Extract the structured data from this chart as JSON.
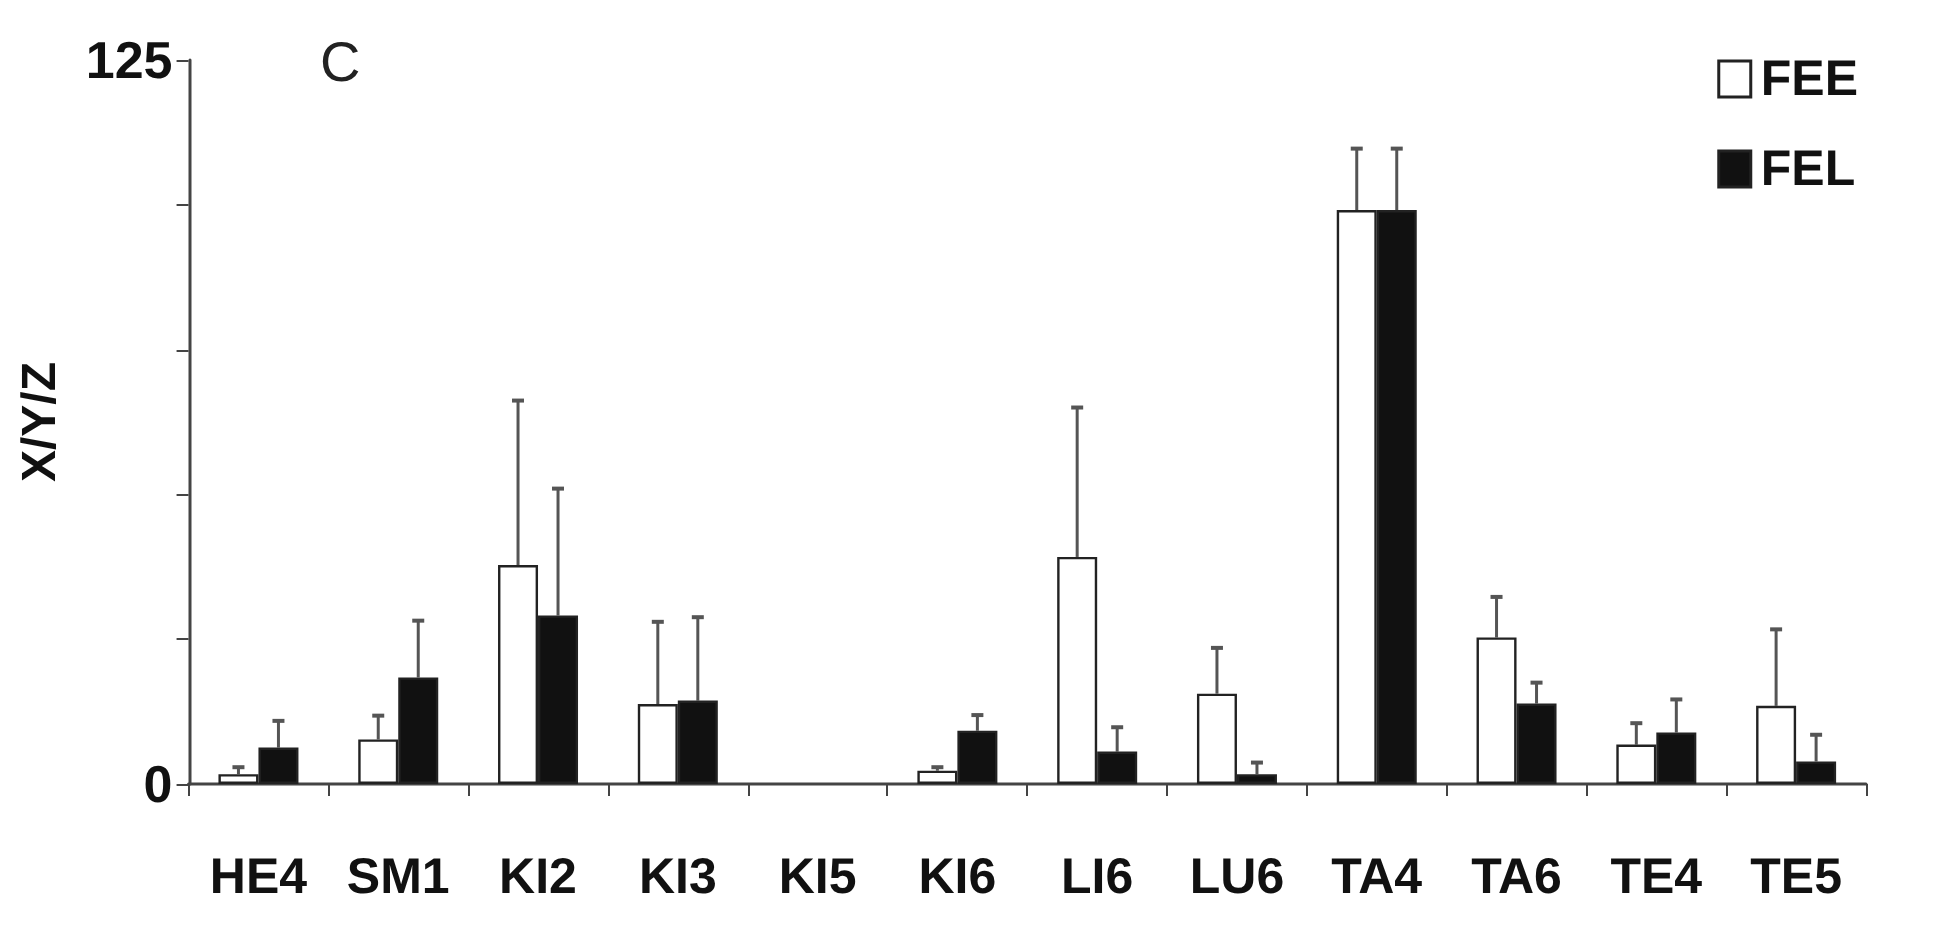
{
  "chart_data": {
    "type": "bar",
    "title": "C",
    "ylabel": "X/Y/Z",
    "categories": [
      "HE4",
      "SM1",
      "KI2",
      "KI3",
      "KI5",
      "KI6",
      "LI6",
      "LU6",
      "TA4",
      "TA6",
      "TE4",
      "TE5"
    ],
    "series": [
      {
        "name": "FEE",
        "color": "#ffffff",
        "values": [
          1.7,
          7.7,
          37.8,
          13.8,
          null,
          2.3,
          39.2,
          15.6,
          99.1,
          25.3,
          6.8,
          13.5
        ],
        "errors": [
          [
            1.7,
            2.9
          ],
          [
            7.7,
            11.8
          ],
          [
            37.8,
            66.2
          ],
          [
            13.8,
            28
          ],
          null,
          [
            2.3,
            2.9
          ],
          [
            39.2,
            65
          ],
          [
            15.6,
            23.5
          ],
          [
            99.1,
            109.7
          ],
          [
            25.3,
            32.3
          ],
          [
            6.8,
            10.5
          ],
          [
            13.5,
            26.7
          ]
        ]
      },
      {
        "name": "FEL",
        "color": "#111111",
        "values": [
          6.3,
          18.4,
          29.1,
          14.4,
          null,
          9.2,
          5.6,
          1.7,
          99.1,
          13.9,
          8.9,
          3.9
        ],
        "errors": [
          [
            6.3,
            10.9
          ],
          [
            18.4,
            28.2
          ],
          [
            29.1,
            51
          ],
          [
            14.4,
            28.8
          ],
          null,
          [
            9.2,
            11.9
          ],
          [
            5.6,
            9.8
          ],
          [
            1.7,
            3.7
          ],
          [
            99.1,
            109.7
          ],
          [
            13.9,
            17.5
          ],
          [
            8.9,
            14.6
          ],
          [
            3.9,
            8.5
          ]
        ]
      }
    ],
    "ylim": [
      0,
      125
    ],
    "yticks": [
      0,
      {
        "value": 25,
        "label": null
      },
      {
        "value": 50,
        "label": null
      },
      {
        "value": 75,
        "label": null
      },
      {
        "value": 100,
        "label": null
      },
      125
    ],
    "grid": false,
    "legend": "top right"
  }
}
